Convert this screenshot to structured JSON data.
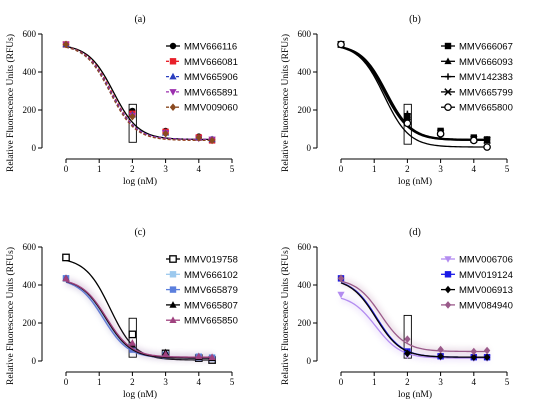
{
  "chart_data": [
    {
      "type": "line",
      "panel_label": "(a)",
      "xlabel": "log (nM)",
      "ylabel": "Relative Fluorescence Units (RFUs)",
      "xlim": [
        -0.3,
        5
      ],
      "ylim": [
        0,
        600
      ],
      "xticks": [
        "0",
        "1",
        "2",
        "3",
        "4",
        "5"
      ],
      "yticks": [
        "0",
        "200",
        "400",
        "600"
      ],
      "highlight_box": {
        "x": [
          1.9,
          2.12
        ],
        "y": [
          30,
          230
        ]
      },
      "legend_position": "right",
      "series": [
        {
          "name": "MMV666116",
          "color": "#000000",
          "marker": "circle",
          "dashed": false,
          "x": [
            0,
            2,
            3,
            4,
            4.4
          ],
          "y": [
            545,
            195,
            90,
            60,
            45
          ]
        },
        {
          "name": "MMV666081",
          "color": "#e8202a",
          "marker": "square",
          "dashed": true,
          "x": [
            0,
            2,
            3,
            4,
            4.4
          ],
          "y": [
            545,
            180,
            85,
            55,
            40
          ]
        },
        {
          "name": "MMV665906",
          "color": "#2b3fbf",
          "marker": "triangle",
          "dashed": true,
          "x": [
            0,
            2,
            3,
            4,
            4.4
          ],
          "y": [
            545,
            175,
            80,
            55,
            45
          ]
        },
        {
          "name": "MMV665891",
          "color": "#9b2fae",
          "marker": "triangle-down",
          "dashed": true,
          "x": [
            0,
            2,
            3,
            4,
            4.4
          ],
          "y": [
            545,
            170,
            80,
            50,
            45
          ]
        },
        {
          "name": "MMV009060",
          "color": "#8a4a20",
          "marker": "diamond",
          "dashed": true,
          "x": [
            0,
            2,
            3,
            4,
            4.4
          ],
          "y": [
            545,
            165,
            75,
            55,
            40
          ]
        }
      ]
    },
    {
      "type": "line",
      "panel_label": "(b)",
      "xlabel": "log (nM)",
      "ylabel": "Relative Fluorescence Units (RFUs)",
      "xlim": [
        -0.3,
        5
      ],
      "ylim": [
        0,
        600
      ],
      "xticks": [
        "0",
        "1",
        "2",
        "3",
        "4",
        "5"
      ],
      "yticks": [
        "0",
        "200",
        "400",
        "600"
      ],
      "highlight_box": {
        "x": [
          1.9,
          2.12
        ],
        "y": [
          20,
          230
        ]
      },
      "legend_position": "right",
      "series": [
        {
          "name": "MMV666067",
          "color": "#000000",
          "marker": "square",
          "dashed": false,
          "x": [
            0,
            2,
            3,
            4,
            4.4
          ],
          "y": [
            545,
            160,
            90,
            55,
            45
          ]
        },
        {
          "name": "MMV666093",
          "color": "#000000",
          "marker": "triangle",
          "dashed": false,
          "x": [
            0,
            2,
            3,
            4,
            4.4
          ],
          "y": [
            545,
            175,
            85,
            50,
            40
          ]
        },
        {
          "name": "MMV142383",
          "color": "#000000",
          "marker": "plus",
          "dashed": false,
          "x": [
            0,
            2,
            3,
            4,
            4.4
          ],
          "y": [
            545,
            180,
            80,
            50,
            45
          ]
        },
        {
          "name": "MMV665799",
          "color": "#000000",
          "marker": "x",
          "dashed": false,
          "x": [
            0,
            2,
            3,
            4,
            4.4
          ],
          "y": [
            545,
            165,
            80,
            45,
            40
          ]
        },
        {
          "name": "MMV665800",
          "color": "#000000",
          "marker": "open-circle",
          "dashed": false,
          "x": [
            0,
            2,
            3,
            4,
            4.4
          ],
          "y": [
            545,
            130,
            75,
            40,
            5
          ]
        }
      ]
    },
    {
      "type": "line",
      "panel_label": "(c)",
      "xlabel": "log (nM)",
      "ylabel": "Relative Fluorescence Units (RFUs)",
      "xlim": [
        -0.3,
        5
      ],
      "ylim": [
        0,
        600
      ],
      "xticks": [
        "0",
        "1",
        "2",
        "3",
        "4",
        "5"
      ],
      "yticks": [
        "0",
        "200",
        "400",
        "600"
      ],
      "highlight_box": {
        "x": [
          1.9,
          2.12
        ],
        "y": [
          20,
          225
        ]
      },
      "legend_position": "right",
      "series": [
        {
          "name": "MMV019758",
          "color": "#000000",
          "marker": "open-square",
          "dashed": false,
          "x": [
            0,
            2,
            3,
            4,
            4.4
          ],
          "y": [
            545,
            140,
            40,
            15,
            5
          ]
        },
        {
          "name": "MMV666102",
          "color": "#9cc9ee",
          "marker": "square",
          "dashed": false,
          "x": [
            0,
            2,
            3,
            4,
            4.4
          ],
          "y": [
            435,
            75,
            35,
            25,
            20
          ]
        },
        {
          "name": "MMV665879",
          "color": "#5b7fdd",
          "marker": "square",
          "dashed": false,
          "x": [
            0,
            2,
            3,
            4,
            4.4
          ],
          "y": [
            435,
            60,
            30,
            20,
            15
          ]
        },
        {
          "name": "MMV665807",
          "color": "#000000",
          "marker": "triangle",
          "dashed": false,
          "x": [
            0,
            2,
            3,
            4,
            4.4
          ],
          "y": [
            435,
            85,
            45,
            20,
            15
          ]
        },
        {
          "name": "MMV665850",
          "color": "#a0427f",
          "marker": "triangle",
          "dashed": false,
          "x": [
            0,
            2,
            3,
            4,
            4.4
          ],
          "y": [
            435,
            95,
            35,
            25,
            20
          ]
        }
      ]
    },
    {
      "type": "line",
      "panel_label": "(d)",
      "xlabel": "log (nM)",
      "ylabel": "Relative Fluorescence Units (RFUs)",
      "xlim": [
        -0.3,
        5
      ],
      "ylim": [
        0,
        600
      ],
      "xticks": [
        "0",
        "1",
        "2",
        "3",
        "4",
        "5"
      ],
      "yticks": [
        "0",
        "200",
        "400",
        "600"
      ],
      "highlight_box": {
        "x": [
          1.9,
          2.12
        ],
        "y": [
          15,
          240
        ]
      },
      "legend_position": "right",
      "series": [
        {
          "name": "MMV006706",
          "color": "#b38cf0",
          "marker": "triangle-down",
          "dashed": false,
          "x": [
            0,
            2,
            3,
            4,
            4.4
          ],
          "y": [
            350,
            30,
            20,
            15,
            15
          ]
        },
        {
          "name": "MMV019124",
          "color": "#1a1ae6",
          "marker": "square",
          "dashed": false,
          "x": [
            0,
            2,
            3,
            4,
            4.4
          ],
          "y": [
            435,
            50,
            25,
            20,
            20
          ]
        },
        {
          "name": "MMV006913",
          "color": "#000000",
          "marker": "diamond",
          "dashed": false,
          "x": [
            0,
            2,
            3,
            4,
            4.4
          ],
          "y": [
            435,
            40,
            25,
            20,
            20
          ]
        },
        {
          "name": "MMV084940",
          "color": "#9a5a8a",
          "marker": "diamond",
          "dashed": false,
          "x": [
            0,
            2,
            3,
            4,
            4.4
          ],
          "y": [
            435,
            115,
            60,
            50,
            55
          ]
        }
      ]
    }
  ]
}
